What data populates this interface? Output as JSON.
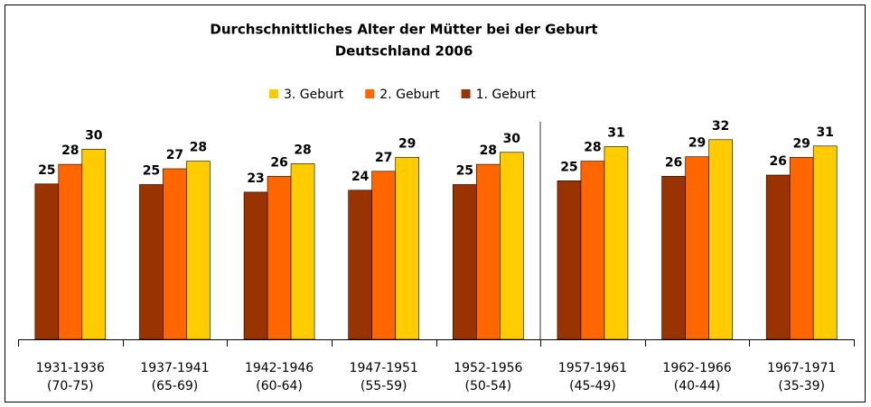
{
  "chart_data": {
    "type": "bar",
    "title": [
      "Durchschnittliches Alter der Mütter bei der Geburt",
      "Deutschland 2006"
    ],
    "categories": [
      [
        "1931-1936",
        "(70-75)"
      ],
      [
        "1937-1941",
        "(65-69)"
      ],
      [
        "1942-1946",
        "(60-64)"
      ],
      [
        "1947-1951",
        "(55-59)"
      ],
      [
        "1952-1956",
        "(50-54)"
      ],
      [
        "1957-1961",
        "(45-49)"
      ],
      [
        "1962-1966",
        "(40-44)"
      ],
      [
        "1967-1971",
        "(35-39)"
      ]
    ],
    "series": [
      {
        "name": "1. Geburt",
        "color": "#993300",
        "values": [
          24.6,
          24.5,
          23.3,
          23.6,
          24.5,
          25.1,
          25.8,
          26.0
        ],
        "value_labels": [
          "25",
          "25",
          "23",
          "24",
          "25",
          "25",
          "26",
          "26"
        ]
      },
      {
        "name": "2. Geburt",
        "color": "#ff6600",
        "values": [
          27.7,
          27.0,
          25.8,
          26.6,
          27.7,
          28.2,
          28.9,
          28.8
        ],
        "value_labels": [
          "28",
          "27",
          "26",
          "27",
          "28",
          "28",
          "29",
          "29"
        ]
      },
      {
        "name": "3. Geburt",
        "color": "#ffcc00",
        "values": [
          30.1,
          28.2,
          27.8,
          28.8,
          29.6,
          30.5,
          31.6,
          30.6
        ],
        "value_labels": [
          "30",
          "28",
          "28",
          "29",
          "30",
          "31",
          "32",
          "31"
        ]
      }
    ],
    "ylim": [
      0,
      40
    ]
  }
}
